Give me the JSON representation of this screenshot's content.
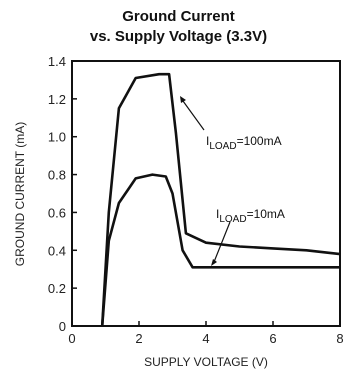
{
  "chart_data": {
    "type": "line",
    "title_line1": "Ground Current",
    "title_line2": "vs. Supply Voltage (3.3V)",
    "xlabel": "SUPPLY VOLTAGE (V)",
    "ylabel": "GROUND CURRENT (mA)",
    "xlim": [
      0,
      8
    ],
    "ylim": [
      0,
      1.4
    ],
    "xticks": [
      "0",
      "2",
      "4",
      "6",
      "8"
    ],
    "yticks": [
      "0",
      "0.2",
      "0.4",
      "0.6",
      "0.8",
      "1.0",
      "1.2",
      "1.4"
    ],
    "grid": false,
    "series": [
      {
        "name_main": "I",
        "name_sub": "LOAD",
        "name_tail": "=100mA",
        "x": [
          0.9,
          1.1,
          1.4,
          1.9,
          2.6,
          2.9,
          3.1,
          3.4,
          4.0,
          5.0,
          6.0,
          7.0,
          8.0
        ],
        "y": [
          0.0,
          0.6,
          1.15,
          1.31,
          1.33,
          1.33,
          1.02,
          0.49,
          0.44,
          0.42,
          0.41,
          0.4,
          0.38
        ]
      },
      {
        "name_main": "I",
        "name_sub": "LOAD",
        "name_tail": "=10mA",
        "x": [
          0.9,
          1.1,
          1.4,
          1.9,
          2.4,
          2.8,
          3.0,
          3.3,
          3.6,
          4.0,
          5.0,
          6.0,
          8.0
        ],
        "y": [
          0.0,
          0.45,
          0.65,
          0.78,
          0.8,
          0.79,
          0.7,
          0.4,
          0.31,
          0.31,
          0.31,
          0.31,
          0.31
        ]
      }
    ]
  }
}
